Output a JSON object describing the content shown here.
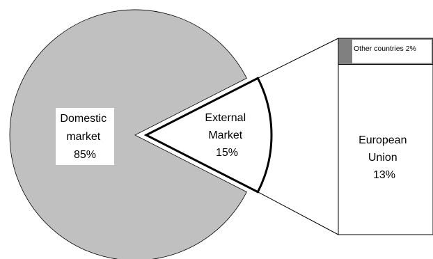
{
  "chart_data": {
    "type": "pie",
    "title": "",
    "main_pie": {
      "slices": [
        {
          "label": "Domestic market",
          "label_lines": [
            "Domestic",
            "market",
            "85%"
          ],
          "value": 85,
          "color": "#c0c0c0"
        },
        {
          "label": "External Market",
          "label_lines": [
            "External",
            "Market",
            "15%"
          ],
          "value": 15,
          "color": "#ffffff",
          "exploded": true
        }
      ]
    },
    "breakdown_of": "External Market",
    "breakdown_bar": {
      "segments": [
        {
          "label": "Other countries 2%",
          "value": 2,
          "color": "#808080"
        },
        {
          "label": "European Union",
          "label_lines": [
            "European",
            "Union",
            "13%"
          ],
          "value": 13,
          "color": "#ffffff"
        }
      ]
    }
  }
}
